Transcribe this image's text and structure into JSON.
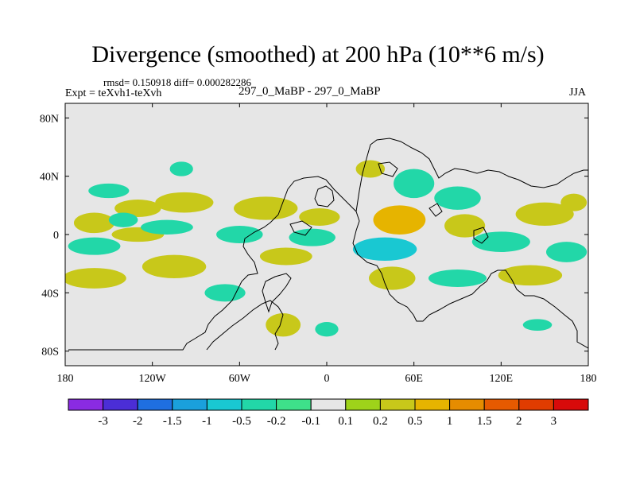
{
  "title": "Divergence (smoothed) at 200 hPa (10**6 m/s)",
  "stats": "rmsd= 0.150918 diff= 0.000282286",
  "expt": "Expt = teXvh1-teXvh",
  "runs": "297_0_MaBP - 297_0_MaBP",
  "season": "JJA",
  "chart_data": {
    "type": "heatmap",
    "projection": "cylindrical equidistant map",
    "xlim": [
      -180,
      180
    ],
    "ylim": [
      -90,
      90
    ],
    "x_ticks": [
      {
        "value": -180,
        "label": "180"
      },
      {
        "value": -120,
        "label": "120W"
      },
      {
        "value": -60,
        "label": "60W"
      },
      {
        "value": 0,
        "label": "0"
      },
      {
        "value": 60,
        "label": "60E"
      },
      {
        "value": 120,
        "label": "120E"
      },
      {
        "value": 180,
        "label": "180"
      }
    ],
    "y_ticks": [
      {
        "value": 80,
        "label": "80N"
      },
      {
        "value": 40,
        "label": "40N"
      },
      {
        "value": 0,
        "label": "0"
      },
      {
        "value": -40,
        "label": "40S"
      },
      {
        "value": -80,
        "label": "80S"
      }
    ],
    "colorbar": {
      "labels": [
        "-3",
        "-2",
        "-1.5",
        "-1",
        "-0.5",
        "-0.2",
        "-0.1",
        "0.1",
        "0.2",
        "0.5",
        "1",
        "1.5",
        "2",
        "3"
      ],
      "colors": [
        "#8a2be2",
        "#4b2ed6",
        "#1f6fe0",
        "#1aa0dc",
        "#19c8d2",
        "#22d7a8",
        "#3ee08a",
        "#e6e6e6",
        "#9ed31a",
        "#c8c81a",
        "#e6b400",
        "#e68c00",
        "#e65a00",
        "#e03c00",
        "#d80a0a"
      ]
    },
    "blobs": [
      {
        "lon": -160,
        "lat": 8,
        "rx": 14,
        "ry": 7,
        "level": 0.3
      },
      {
        "lon": -130,
        "lat": 18,
        "rx": 16,
        "ry": 6,
        "level": 0.3
      },
      {
        "lon": -98,
        "lat": 22,
        "rx": 20,
        "ry": 7,
        "level": 0.3
      },
      {
        "lon": -42,
        "lat": 18,
        "rx": 22,
        "ry": 8,
        "level": 0.3
      },
      {
        "lon": -5,
        "lat": 12,
        "rx": 14,
        "ry": 6,
        "level": 0.3
      },
      {
        "lon": 50,
        "lat": 10,
        "rx": 18,
        "ry": 10,
        "level": 0.5
      },
      {
        "lon": 95,
        "lat": 6,
        "rx": 14,
        "ry": 8,
        "level": 0.3
      },
      {
        "lon": 150,
        "lat": 14,
        "rx": 20,
        "ry": 8,
        "level": 0.3
      },
      {
        "lon": -130,
        "lat": 0,
        "rx": 18,
        "ry": 5,
        "level": 0.3
      },
      {
        "lon": -160,
        "lat": -30,
        "rx": 22,
        "ry": 7,
        "level": 0.3
      },
      {
        "lon": -105,
        "lat": -22,
        "rx": 22,
        "ry": 8,
        "level": 0.3
      },
      {
        "lon": -28,
        "lat": -15,
        "rx": 18,
        "ry": 6,
        "level": 0.3
      },
      {
        "lon": 45,
        "lat": -30,
        "rx": 16,
        "ry": 8,
        "level": 0.3
      },
      {
        "lon": 140,
        "lat": -28,
        "rx": 22,
        "ry": 7,
        "level": 0.3
      },
      {
        "lon": 170,
        "lat": 22,
        "rx": 9,
        "ry": 6,
        "level": 0.3
      },
      {
        "lon": -30,
        "lat": -62,
        "rx": 12,
        "ry": 8,
        "level": 0.2
      },
      {
        "lon": 30,
        "lat": 45,
        "rx": 10,
        "ry": 6,
        "level": 0.2
      },
      {
        "lon": -160,
        "lat": -8,
        "rx": 18,
        "ry": 6,
        "level": -0.3
      },
      {
        "lon": -140,
        "lat": 10,
        "rx": 10,
        "ry": 5,
        "level": -0.2
      },
      {
        "lon": -110,
        "lat": 5,
        "rx": 18,
        "ry": 5,
        "level": -0.3
      },
      {
        "lon": -60,
        "lat": 0,
        "rx": 16,
        "ry": 6,
        "level": -0.3
      },
      {
        "lon": -10,
        "lat": -2,
        "rx": 16,
        "ry": 6,
        "level": -0.2
      },
      {
        "lon": 40,
        "lat": -10,
        "rx": 22,
        "ry": 8,
        "level": -0.5
      },
      {
        "lon": 90,
        "lat": 25,
        "rx": 16,
        "ry": 8,
        "level": -0.3
      },
      {
        "lon": 120,
        "lat": -5,
        "rx": 20,
        "ry": 7,
        "level": -0.3
      },
      {
        "lon": 165,
        "lat": -12,
        "rx": 14,
        "ry": 7,
        "level": -0.3
      },
      {
        "lon": 90,
        "lat": -30,
        "rx": 20,
        "ry": 6,
        "level": -0.2
      },
      {
        "lon": -150,
        "lat": 30,
        "rx": 14,
        "ry": 5,
        "level": -0.2
      },
      {
        "lon": -100,
        "lat": 45,
        "rx": 8,
        "ry": 5,
        "level": -0.2
      },
      {
        "lon": -70,
        "lat": -40,
        "rx": 14,
        "ry": 6,
        "level": -0.2
      },
      {
        "lon": 60,
        "lat": 35,
        "rx": 14,
        "ry": 10,
        "level": -0.2
      },
      {
        "lon": 0,
        "lat": -65,
        "rx": 8,
        "ry": 5,
        "level": -0.2
      },
      {
        "lon": 145,
        "lat": -62,
        "rx": 10,
        "ry": 4,
        "level": -0.2
      }
    ]
  }
}
